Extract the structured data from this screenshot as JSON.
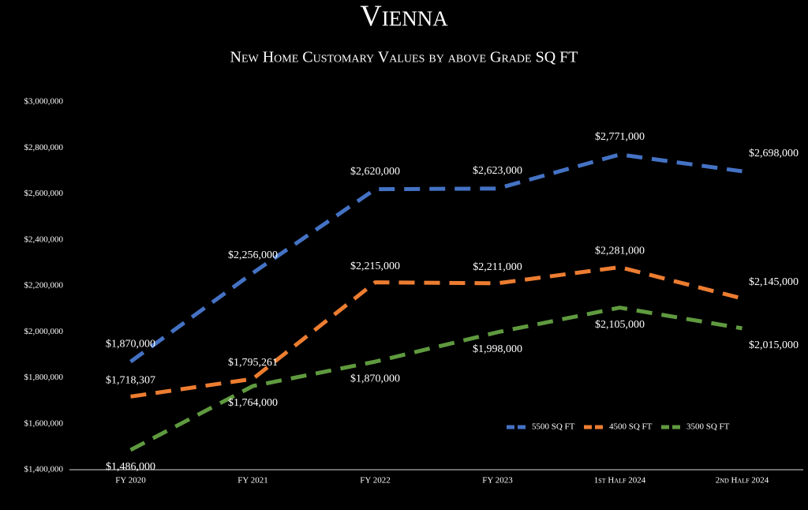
{
  "chart_data": {
    "type": "line",
    "title": "Vienna",
    "subtitle": "New Home Customary Values by above Grade SQ FT",
    "categories": [
      "FY 2020",
      "FY 2021",
      "FY 2022",
      "FY 2023",
      "1st Half 2024",
      "2nd Half 2024"
    ],
    "series": [
      {
        "name": "5500 SQ FT",
        "color": "#4472c4",
        "values": [
          1870000,
          2256000,
          2620000,
          2623000,
          2771000,
          2698000
        ],
        "value_labels": [
          "$1,870,000",
          "$2,256,000",
          "$2,620,000",
          "$2,623,000",
          "$2,771,000",
          "$2,698,000"
        ]
      },
      {
        "name": "4500 SQ FT",
        "color": "#ed7d31",
        "values": [
          1718307,
          1795261,
          2215000,
          2211000,
          2281000,
          2145000
        ],
        "value_labels": [
          "$1,718,307",
          "$1,795,261",
          "$2,215,000",
          "$2,211,000",
          "$2,281,000",
          "$2,145,000"
        ]
      },
      {
        "name": "3500 SQ FT",
        "color": "#5f9a3f",
        "values": [
          1486000,
          1764000,
          1870000,
          1998000,
          2105000,
          2015000
        ],
        "value_labels": [
          "$1,486,000",
          "$1,764,000",
          "$1,870,000",
          "$1,998,000",
          "$2,105,000",
          "$2,015,000"
        ]
      }
    ],
    "ylim": [
      1400000,
      3000000
    ],
    "yticks": [
      {
        "value": 1400000,
        "label": "$1,400,000"
      },
      {
        "value": 1600000,
        "label": "$1,600,000"
      },
      {
        "value": 1800000,
        "label": "$1,800,000"
      },
      {
        "value": 2000000,
        "label": "$2,000,000"
      },
      {
        "value": 2200000,
        "label": "$2,200,000"
      },
      {
        "value": 2400000,
        "label": "$2,400,000"
      },
      {
        "value": 2600000,
        "label": "$2,600,000"
      },
      {
        "value": 2800000,
        "label": "$2,800,000"
      },
      {
        "value": 3000000,
        "label": "$3,000,000"
      }
    ],
    "grid": false,
    "legend": "bottom-right"
  }
}
